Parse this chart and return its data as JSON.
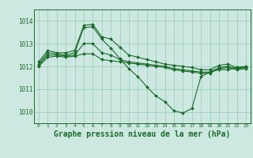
{
  "background_color": "#cce8e0",
  "grid_color": "#99ccbb",
  "line_color": "#1a6b2a",
  "xlabel": "Graphe pression niveau de la mer (hPa)",
  "xlabel_fontsize": 7,
  "yticks": [
    1010,
    1011,
    1012,
    1013,
    1014
  ],
  "ylim": [
    1009.5,
    1014.5
  ],
  "xlim": [
    -0.5,
    23.5
  ],
  "xticks": [
    0,
    1,
    2,
    3,
    4,
    5,
    6,
    7,
    8,
    9,
    10,
    11,
    12,
    13,
    14,
    15,
    16,
    17,
    18,
    19,
    20,
    21,
    22,
    23
  ],
  "series": [
    [
      1012.2,
      1012.7,
      1012.6,
      1012.6,
      1012.7,
      1013.8,
      1013.85,
      1013.3,
      1013.2,
      1012.85,
      1012.5,
      1012.4,
      1012.3,
      1012.2,
      1012.1,
      1012.05,
      1012.0,
      1011.95,
      1011.85,
      1011.85,
      1012.05,
      1012.1,
      1011.95,
      1012.0
    ],
    [
      1012.1,
      1012.6,
      1012.55,
      1012.5,
      1012.6,
      1013.7,
      1013.75,
      1013.2,
      1012.8,
      1012.35,
      1011.9,
      1011.55,
      1011.1,
      1010.7,
      1010.45,
      1010.05,
      1009.95,
      1010.15,
      1011.55,
      1011.75,
      1011.85,
      1011.85,
      1011.95,
      1011.95
    ],
    [
      1012.05,
      1012.5,
      1012.5,
      1012.45,
      1012.5,
      1013.0,
      1013.0,
      1012.6,
      1012.5,
      1012.3,
      1012.2,
      1012.15,
      1012.1,
      1012.05,
      1012.0,
      1011.9,
      1011.85,
      1011.8,
      1011.75,
      1011.75,
      1011.95,
      1012.0,
      1011.9,
      1011.95
    ],
    [
      1012.0,
      1012.4,
      1012.45,
      1012.4,
      1012.45,
      1012.55,
      1012.55,
      1012.3,
      1012.25,
      1012.2,
      1012.15,
      1012.1,
      1012.05,
      1012.0,
      1011.95,
      1011.85,
      1011.8,
      1011.75,
      1011.7,
      1011.7,
      1011.9,
      1011.95,
      1011.85,
      1011.9
    ]
  ]
}
